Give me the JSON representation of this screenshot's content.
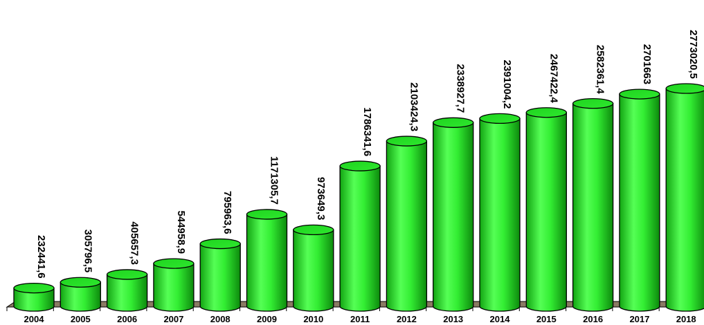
{
  "chart_data": {
    "type": "bar",
    "style": "3d-cylinder",
    "bar_color": "#33ee33",
    "bar_color_dark": "#0d8a0d",
    "floor_color": "#8a7a63",
    "title": "",
    "xlabel": "",
    "ylabel": "",
    "ylim": [
      0,
      2800000
    ],
    "grid": false,
    "legend": "none",
    "categories": [
      "2004",
      "2005",
      "2006",
      "2007",
      "2008",
      "2009",
      "2010",
      "2011",
      "2012",
      "2013",
      "2014",
      "2015",
      "2016",
      "2017",
      "2018"
    ],
    "values": [
      232441.6,
      305796.5,
      405657.3,
      544958.9,
      795963.6,
      1171305.7,
      973649.3,
      1786341.6,
      2103424.3,
      2338927.7,
      2391004.2,
      2467422.4,
      2582361.4,
      2701663,
      2773020.5
    ],
    "labels": [
      "232441,6",
      "305796,5",
      "405657,3",
      "544958,9",
      "795963,6",
      "1171305,7",
      "973649,3",
      "1786341,6",
      "2103424,3",
      "2338927,7",
      "2391004,2",
      "2467422,4",
      "2582361,4",
      "2701663",
      "2773020,5"
    ]
  }
}
